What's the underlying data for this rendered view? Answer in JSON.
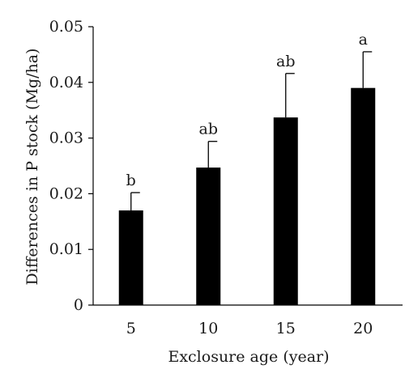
{
  "chart_data": {
    "type": "bar",
    "title": "",
    "xlabel": "Exclosure age (year)",
    "ylabel": "Differences in P stock (Mg/ha)",
    "categories": [
      "5",
      "10",
      "15",
      "20"
    ],
    "values": [
      0.017,
      0.0247,
      0.0337,
      0.039
    ],
    "error_upper": [
      0.0032,
      0.0047,
      0.0079,
      0.0065
    ],
    "significance_letters": [
      "b",
      "ab",
      "ab",
      "a"
    ],
    "ylim": [
      0,
      0.05
    ],
    "yticks": [
      "0",
      "0.01",
      "0.02",
      "0.03",
      "0.04",
      "0.05"
    ],
    "ytick_values": [
      0,
      0.01,
      0.02,
      0.03,
      0.04,
      0.05
    ],
    "grid": false,
    "bar_color": "#000000",
    "axis_color": "#000000"
  }
}
